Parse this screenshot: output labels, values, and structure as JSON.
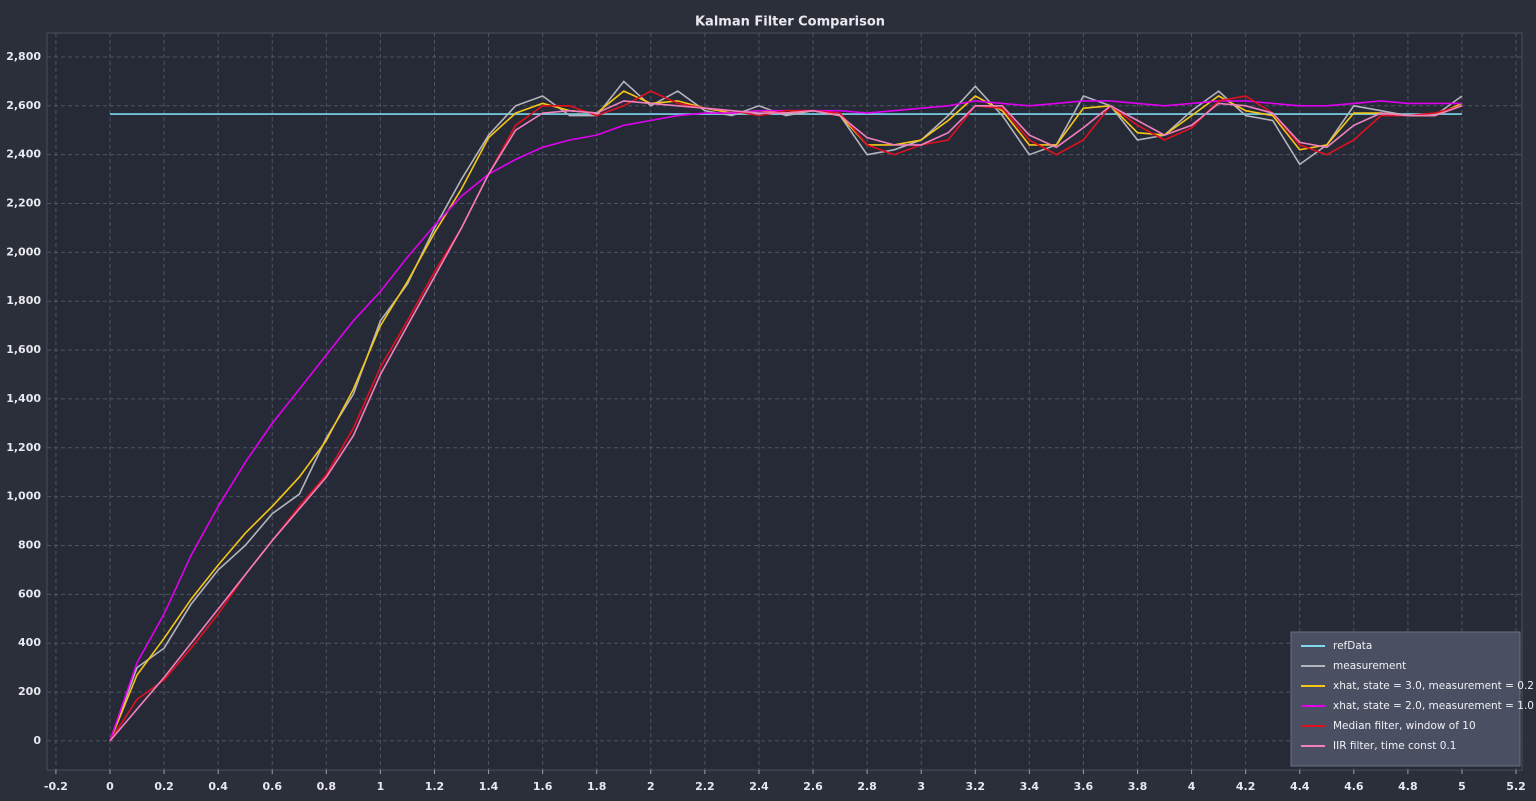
{
  "chart_data": {
    "type": "line",
    "title": "Kalman Filter Comparison",
    "x": [
      0,
      0.1,
      0.2,
      0.3,
      0.4,
      0.5,
      0.6,
      0.7,
      0.8,
      0.9,
      1.0,
      1.1,
      1.2,
      1.3,
      1.4,
      1.5,
      1.6,
      1.7,
      1.8,
      1.9,
      2.0,
      2.1,
      2.2,
      2.3,
      2.4,
      2.5,
      2.6,
      2.7,
      2.8,
      2.9,
      3.0,
      3.1,
      3.2,
      3.3,
      3.4,
      3.5,
      3.6,
      3.7,
      3.8,
      3.9,
      4.0,
      4.1,
      4.2,
      4.3,
      4.4,
      4.5,
      4.6,
      4.7,
      4.8,
      4.9,
      5.0
    ],
    "series": [
      {
        "name": "refData",
        "color": "#7fd8f0",
        "values": [
          2566,
          2566,
          2566,
          2566,
          2566,
          2566,
          2566,
          2566,
          2566,
          2566,
          2566,
          2566,
          2566,
          2566,
          2566,
          2566,
          2566,
          2566,
          2566,
          2566,
          2566,
          2566,
          2566,
          2566,
          2566,
          2566,
          2566,
          2566,
          2566,
          2566,
          2566,
          2566,
          2566,
          2566,
          2566,
          2566,
          2566,
          2566,
          2566,
          2566,
          2566,
          2566,
          2566,
          2566,
          2566,
          2566,
          2566,
          2566,
          2566,
          2566,
          2566
        ]
      },
      {
        "name": "measurement",
        "color": "#b4b4bc",
        "values": [
          0,
          300,
          380,
          560,
          700,
          800,
          930,
          1010,
          1240,
          1420,
          1720,
          1870,
          2100,
          2300,
          2480,
          2600,
          2640,
          2560,
          2560,
          2700,
          2600,
          2660,
          2580,
          2560,
          2600,
          2560,
          2580,
          2560,
          2400,
          2420,
          2460,
          2560,
          2680,
          2560,
          2400,
          2440,
          2640,
          2600,
          2460,
          2480,
          2580,
          2660,
          2560,
          2540,
          2360,
          2440,
          2600,
          2580,
          2560,
          2560,
          2640
        ]
      },
      {
        "name": "xhat, state = 3.0, measurement = 0.2",
        "color": "#f5c518",
        "values": [
          0,
          270,
          420,
          580,
          720,
          850,
          960,
          1080,
          1230,
          1440,
          1700,
          1880,
          2080,
          2260,
          2470,
          2570,
          2610,
          2580,
          2570,
          2660,
          2610,
          2620,
          2590,
          2570,
          2580,
          2570,
          2580,
          2560,
          2440,
          2440,
          2460,
          2540,
          2640,
          2580,
          2440,
          2440,
          2590,
          2600,
          2490,
          2480,
          2560,
          2640,
          2580,
          2560,
          2420,
          2440,
          2570,
          2570,
          2560,
          2560,
          2610
        ]
      },
      {
        "name": "xhat, state = 2.0, measurement = 1.0",
        "color": "#e000f0",
        "values": [
          0,
          320,
          520,
          760,
          960,
          1140,
          1300,
          1440,
          1580,
          1720,
          1840,
          1980,
          2110,
          2230,
          2320,
          2380,
          2430,
          2460,
          2480,
          2520,
          2540,
          2560,
          2570,
          2570,
          2580,
          2580,
          2580,
          2580,
          2570,
          2580,
          2590,
          2600,
          2620,
          2610,
          2600,
          2610,
          2620,
          2620,
          2610,
          2600,
          2610,
          2620,
          2620,
          2610,
          2600,
          2600,
          2610,
          2620,
          2610,
          2610,
          2610
        ]
      },
      {
        "name": "Median filter, window of 10",
        "color": "#e01020",
        "values": [
          0,
          170,
          250,
          380,
          520,
          680,
          820,
          960,
          1090,
          1280,
          1530,
          1720,
          1920,
          2100,
          2320,
          2520,
          2600,
          2600,
          2560,
          2600,
          2660,
          2610,
          2590,
          2580,
          2560,
          2580,
          2580,
          2570,
          2440,
          2400,
          2440,
          2460,
          2600,
          2590,
          2460,
          2400,
          2460,
          2600,
          2520,
          2460,
          2510,
          2620,
          2640,
          2570,
          2440,
          2400,
          2460,
          2560,
          2560,
          2570,
          2600
        ]
      },
      {
        "name": "IIR filter, time const 0.1",
        "color": "#f080c0",
        "values": [
          0,
          130,
          260,
          400,
          540,
          680,
          820,
          950,
          1080,
          1250,
          1500,
          1700,
          1900,
          2100,
          2320,
          2500,
          2570,
          2580,
          2570,
          2620,
          2610,
          2600,
          2590,
          2580,
          2570,
          2570,
          2580,
          2560,
          2470,
          2440,
          2440,
          2490,
          2600,
          2600,
          2480,
          2430,
          2510,
          2600,
          2540,
          2480,
          2520,
          2610,
          2600,
          2570,
          2450,
          2430,
          2520,
          2570,
          2560,
          2560,
          2600
        ]
      }
    ],
    "xlim": [
      -0.233,
      5.222
    ],
    "ylim": [
      -119,
      2898
    ],
    "xticks": [
      -0.2,
      0,
      0.2,
      0.4,
      0.6,
      0.8,
      1,
      1.2,
      1.4,
      1.6,
      1.8,
      2,
      2.2,
      2.4,
      2.6,
      2.8,
      3,
      3.2,
      3.4,
      3.6,
      3.8,
      4,
      4.2,
      4.4,
      4.6,
      4.8,
      5,
      5.2
    ],
    "yticks": [
      0,
      200,
      400,
      600,
      800,
      {
        "value": 1000,
        "label": "1,000"
      },
      {
        "value": 1200,
        "label": "1,200"
      },
      {
        "value": 1400,
        "label": "1,400"
      },
      {
        "value": 1600,
        "label": "1,600"
      },
      {
        "value": 1800,
        "label": "1,800"
      },
      {
        "value": 2000,
        "label": "2,000"
      },
      {
        "value": 2200,
        "label": "2,200"
      },
      {
        "value": 2400,
        "label": "2,400"
      },
      {
        "value": 2600,
        "label": "2,600"
      },
      {
        "value": 2800,
        "label": "2,800"
      }
    ],
    "grid": true,
    "legend": "lower right"
  }
}
